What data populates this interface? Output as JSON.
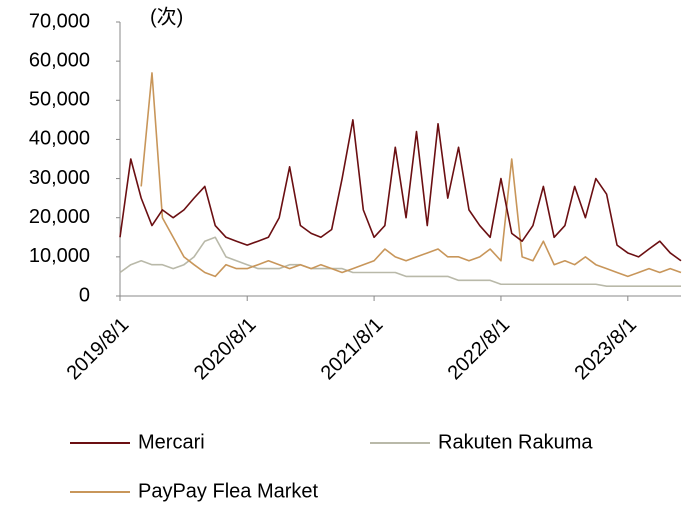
{
  "chart_data": {
    "type": "line",
    "y_unit": "(次)",
    "x": [
      "2019/8/1",
      "2019/9/1",
      "2019/10/1",
      "2019/11/1",
      "2019/12/1",
      "2020/1/1",
      "2020/2/1",
      "2020/3/1",
      "2020/4/1",
      "2020/5/1",
      "2020/6/1",
      "2020/7/1",
      "2020/8/1",
      "2020/9/1",
      "2020/10/1",
      "2020/11/1",
      "2020/12/1",
      "2021/1/1",
      "2021/2/1",
      "2021/3/1",
      "2021/4/1",
      "2021/5/1",
      "2021/6/1",
      "2021/7/1",
      "2021/8/1",
      "2021/9/1",
      "2021/10/1",
      "2021/11/1",
      "2021/12/1",
      "2022/1/1",
      "2022/2/1",
      "2022/3/1",
      "2022/4/1",
      "2022/5/1",
      "2022/6/1",
      "2022/7/1",
      "2022/8/1",
      "2022/9/1",
      "2022/10/1",
      "2022/11/1",
      "2022/12/1",
      "2023/1/1",
      "2023/2/1",
      "2023/3/1",
      "2023/4/1",
      "2023/5/1",
      "2023/6/1",
      "2023/7/1",
      "2023/8/1",
      "2023/9/1",
      "2023/10/1",
      "2023/11/1",
      "2023/12/1",
      "2024/1/1"
    ],
    "series": [
      {
        "name": "Mercari",
        "color": "#6b0f12",
        "values": [
          15000,
          35000,
          25000,
          18000,
          22000,
          20000,
          22000,
          25000,
          28000,
          18000,
          15000,
          14000,
          13000,
          14000,
          15000,
          20000,
          33000,
          18000,
          16000,
          15000,
          17000,
          30000,
          45000,
          22000,
          15000,
          18000,
          38000,
          20000,
          42000,
          18000,
          44000,
          25000,
          38000,
          22000,
          18000,
          15000,
          30000,
          16000,
          14000,
          18000,
          28000,
          15000,
          18000,
          28000,
          20000,
          30000,
          26000,
          13000,
          11000,
          10000,
          12000,
          14000,
          11000,
          9000
        ]
      },
      {
        "name": "Rakuten Rakuma",
        "color": "#b9b9a9",
        "values": [
          6000,
          8000,
          9000,
          8000,
          8000,
          7000,
          8000,
          10000,
          14000,
          15000,
          10000,
          9000,
          8000,
          7000,
          7000,
          7000,
          8000,
          8000,
          7000,
          7000,
          7000,
          7000,
          6000,
          6000,
          6000,
          6000,
          6000,
          5000,
          5000,
          5000,
          5000,
          5000,
          4000,
          4000,
          4000,
          4000,
          3000,
          3000,
          3000,
          3000,
          3000,
          3000,
          3000,
          3000,
          3000,
          3000,
          2500,
          2500,
          2500,
          2500,
          2500,
          2500,
          2500,
          2500
        ]
      },
      {
        "name": "PayPay Flea Market",
        "color": "#c8965a",
        "values": [
          null,
          null,
          28000,
          57000,
          20000,
          15000,
          10000,
          8000,
          6000,
          5000,
          8000,
          7000,
          7000,
          8000,
          9000,
          8000,
          7000,
          8000,
          7000,
          8000,
          7000,
          6000,
          7000,
          8000,
          9000,
          12000,
          10000,
          9000,
          10000,
          11000,
          12000,
          10000,
          10000,
          9000,
          10000,
          12000,
          9000,
          35000,
          10000,
          9000,
          14000,
          8000,
          9000,
          8000,
          10000,
          8000,
          7000,
          6000,
          5000,
          6000,
          7000,
          6000,
          7000,
          6000
        ]
      }
    ],
    "xlim": [
      "2019/8/1",
      "2024/1/1"
    ],
    "xticks": [
      "2019/8/1",
      "2020/8/1",
      "2021/8/1",
      "2022/8/1",
      "2023/8/1"
    ],
    "ylim": [
      0,
      70000
    ],
    "yticks": [
      0,
      {
        "value": 10000,
        "label": "10,000"
      },
      {
        "value": 20000,
        "label": "20,000"
      },
      {
        "value": 30000,
        "label": "30,000"
      },
      {
        "value": 40000,
        "label": "40,000"
      },
      {
        "value": 50000,
        "label": "50,000"
      },
      {
        "value": 60000,
        "label": "60,000"
      },
      {
        "value": 70000,
        "label": "70,000"
      }
    ],
    "grid": false,
    "legend": "bottom"
  }
}
